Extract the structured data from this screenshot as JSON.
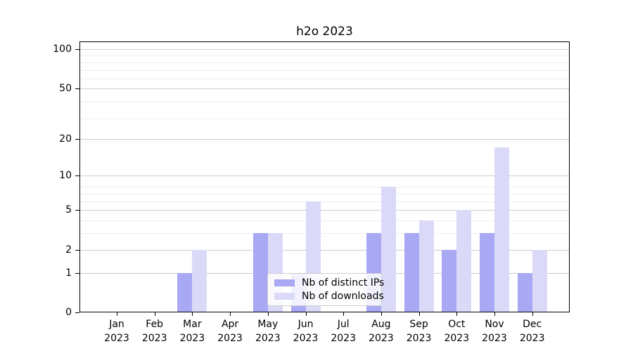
{
  "title": "h2o 2023",
  "chart_data": {
    "type": "bar",
    "title": "h2o 2023",
    "categories": [
      "Jan 2023",
      "Feb 2023",
      "Mar 2023",
      "Apr 2023",
      "May 2023",
      "Jun 2023",
      "Jul 2023",
      "Aug 2023",
      "Sep 2023",
      "Oct 2023",
      "Nov 2023",
      "Dec 2023"
    ],
    "series": [
      {
        "name": "Nb of distinct IPs",
        "color": "#a8a8f4",
        "values": [
          0,
          0,
          1,
          0,
          3,
          1,
          0,
          3,
          3,
          2,
          3,
          1
        ]
      },
      {
        "name": "Nb of downloads",
        "color": "#dadaf8",
        "values": [
          0,
          0,
          2,
          0,
          3,
          6,
          0,
          8,
          4,
          5,
          17,
          2
        ]
      }
    ],
    "y_scale": "log(value+1)",
    "y_ticks": [
      0,
      1,
      2,
      5,
      10,
      20,
      50,
      100
    ],
    "ylim": [
      0,
      115
    ],
    "xlabel": "",
    "ylabel": "",
    "grid": true,
    "legend_position": "lower center",
    "grid_major_color": "#cccccc",
    "grid_minor_color": "#eeeeee"
  }
}
